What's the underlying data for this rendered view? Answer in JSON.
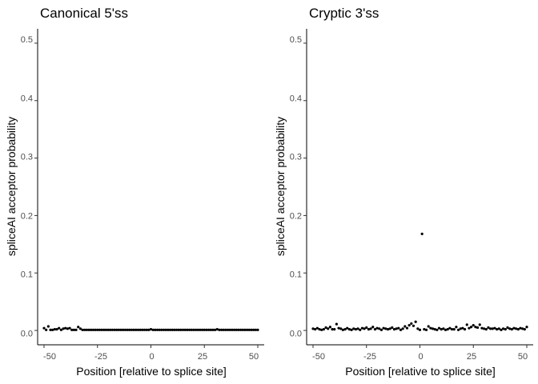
{
  "chart_data": [
    {
      "type": "scatter",
      "title": "Canonical 5'ss",
      "xlabel": "Position [relative to splice site]",
      "ylabel": "spliceAI acceptor probability",
      "xlim": [
        -53,
        53
      ],
      "ylim": [
        -0.025,
        0.525
      ],
      "xticks": [
        -50,
        -25,
        0,
        25,
        50
      ],
      "xtick_labels": [
        "-50",
        "-25",
        "0",
        "25",
        "50"
      ],
      "yticks": [
        0.0,
        0.1,
        0.2,
        0.3,
        0.4,
        0.5
      ],
      "ytick_labels": [
        "0.0",
        "0.1",
        "0.2",
        "0.3",
        "0.4",
        "0.5"
      ],
      "grid": false,
      "point_color": "#000000",
      "x": [
        -50,
        -49,
        -48,
        -47,
        -46,
        -45,
        -44,
        -43,
        -42,
        -41,
        -40,
        -39,
        -38,
        -37,
        -36,
        -35,
        -34,
        -33,
        -32,
        -31,
        -30,
        -29,
        -28,
        -27,
        -26,
        -25,
        -24,
        -23,
        -22,
        -21,
        -20,
        -19,
        -18,
        -17,
        -16,
        -15,
        -14,
        -13,
        -12,
        -11,
        -10,
        -9,
        -8,
        -7,
        -6,
        -5,
        -4,
        -3,
        -2,
        -1,
        0,
        1,
        2,
        3,
        4,
        5,
        6,
        7,
        8,
        9,
        10,
        11,
        12,
        13,
        14,
        15,
        16,
        17,
        18,
        19,
        20,
        21,
        22,
        23,
        24,
        25,
        26,
        27,
        28,
        29,
        30,
        31,
        32,
        33,
        34,
        35,
        36,
        37,
        38,
        39,
        40,
        41,
        42,
        43,
        44,
        45,
        46,
        47,
        48,
        49,
        50
      ],
      "y": [
        0.004,
        0.001,
        0.007,
        0.001,
        0.001,
        0.002,
        0.002,
        0.004,
        0.001,
        0.003,
        0.004,
        0.003,
        0.004,
        0.001,
        0.001,
        0.001,
        0.006,
        0.003,
        0.001,
        0.001,
        0.001,
        0.001,
        0.001,
        0.001,
        0.001,
        0.001,
        0.001,
        0.001,
        0.001,
        0.001,
        0.001,
        0.001,
        0.001,
        0.001,
        0.001,
        0.001,
        0.001,
        0.001,
        0.001,
        0.001,
        0.001,
        0.001,
        0.001,
        0.001,
        0.001,
        0.001,
        0.001,
        0.001,
        0.001,
        0.001,
        0.002,
        0.001,
        0.001,
        0.001,
        0.001,
        0.001,
        0.001,
        0.001,
        0.001,
        0.001,
        0.001,
        0.001,
        0.001,
        0.001,
        0.001,
        0.001,
        0.001,
        0.001,
        0.001,
        0.001,
        0.001,
        0.001,
        0.001,
        0.001,
        0.001,
        0.001,
        0.001,
        0.001,
        0.001,
        0.001,
        0.001,
        0.002,
        0.001,
        0.001,
        0.001,
        0.001,
        0.001,
        0.001,
        0.001,
        0.001,
        0.001,
        0.001,
        0.001,
        0.001,
        0.001,
        0.001,
        0.001,
        0.001,
        0.001,
        0.001,
        0.001
      ]
    },
    {
      "type": "scatter",
      "title": "Cryptic 3'ss",
      "xlabel": "Position [relative to splice site]",
      "ylabel": "spliceAI acceptor probability",
      "xlim": [
        -53,
        53
      ],
      "ylim": [
        -0.025,
        0.525
      ],
      "xticks": [
        -50,
        -25,
        0,
        25,
        50
      ],
      "xtick_labels": [
        "-50",
        "-25",
        "0",
        "25",
        "50"
      ],
      "yticks": [
        0.0,
        0.1,
        0.2,
        0.3,
        0.4,
        0.5
      ],
      "ytick_labels": [
        "0.0",
        "0.1",
        "0.2",
        "0.3",
        "0.4",
        "0.5"
      ],
      "grid": false,
      "point_color": "#000000",
      "x": [
        -50,
        -49,
        -48,
        -47,
        -46,
        -45,
        -44,
        -43,
        -42,
        -41,
        -40,
        -39,
        -38,
        -37,
        -36,
        -35,
        -34,
        -33,
        -32,
        -31,
        -30,
        -29,
        -28,
        -27,
        -26,
        -25,
        -24,
        -23,
        -22,
        -21,
        -20,
        -19,
        -18,
        -17,
        -16,
        -15,
        -14,
        -13,
        -12,
        -11,
        -10,
        -9,
        -8,
        -7,
        -6,
        -5,
        -4,
        -3,
        -2,
        -1,
        0,
        1,
        2,
        3,
        4,
        5,
        6,
        7,
        8,
        9,
        10,
        11,
        12,
        13,
        14,
        15,
        16,
        17,
        18,
        19,
        20,
        21,
        22,
        23,
        24,
        25,
        26,
        27,
        28,
        29,
        30,
        31,
        32,
        33,
        34,
        35,
        36,
        37,
        38,
        39,
        40,
        41,
        42,
        43,
        44,
        45,
        46,
        47,
        48,
        49,
        50
      ],
      "y": [
        0.003,
        0.002,
        0.004,
        0.002,
        0.001,
        0.002,
        0.005,
        0.003,
        0.006,
        0.002,
        0.002,
        0.011,
        0.004,
        0.003,
        0.001,
        0.002,
        0.004,
        0.002,
        0.001,
        0.003,
        0.002,
        0.003,
        0.001,
        0.004,
        0.003,
        0.005,
        0.002,
        0.003,
        0.006,
        0.002,
        0.004,
        0.003,
        0.001,
        0.004,
        0.003,
        0.002,
        0.003,
        0.005,
        0.002,
        0.003,
        0.004,
        0.001,
        0.003,
        0.007,
        0.004,
        0.009,
        0.012,
        0.008,
        0.015,
        0.003,
        0.001,
        0.168,
        0.002,
        0.001,
        0.007,
        0.004,
        0.003,
        0.002,
        0.001,
        0.004,
        0.002,
        0.003,
        0.001,
        0.002,
        0.004,
        0.002,
        0.002,
        0.006,
        0.001,
        0.003,
        0.004,
        0.002,
        0.01,
        0.004,
        0.006,
        0.009,
        0.006,
        0.005,
        0.01,
        0.004,
        0.003,
        0.002,
        0.005,
        0.003,
        0.003,
        0.004,
        0.002,
        0.003,
        0.001,
        0.003,
        0.002,
        0.005,
        0.003,
        0.002,
        0.004,
        0.003,
        0.002,
        0.004,
        0.003,
        0.002,
        0.006
      ]
    }
  ]
}
